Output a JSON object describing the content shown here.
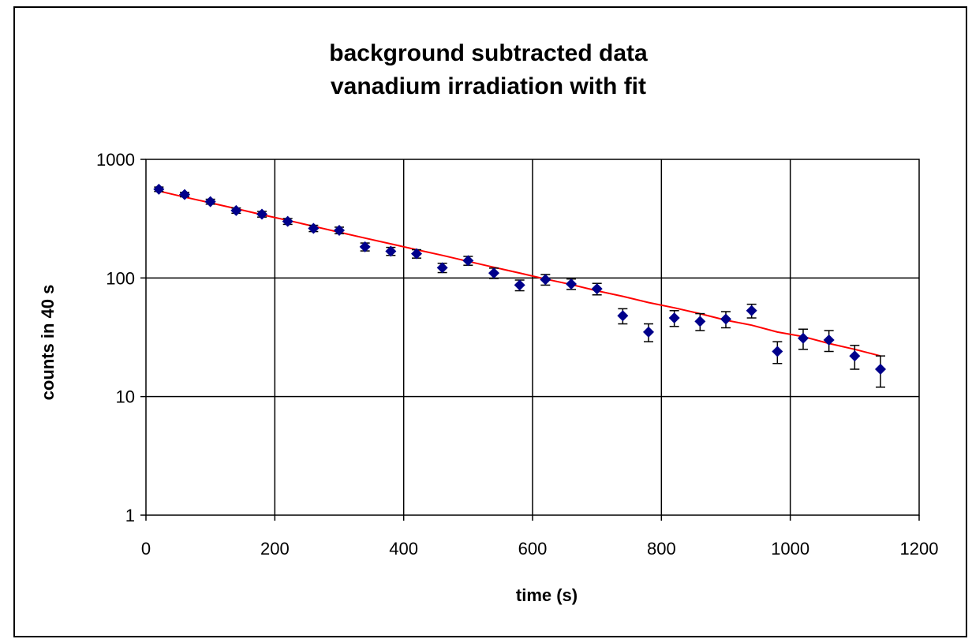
{
  "chart_data": {
    "type": "scatter",
    "title": [
      "background subtracted data",
      "vanadium irradiation with fit"
    ],
    "xlabel": "time  (s)",
    "ylabel": "counts in 40 s",
    "xlim": [
      0,
      1200
    ],
    "ylim": [
      1,
      1000
    ],
    "yscale": "log",
    "grid": true,
    "legend": "none",
    "x_ticks": [
      "0",
      "200",
      "400",
      "600",
      "800",
      "1000",
      "1200"
    ],
    "y_ticks": [
      "1",
      "10",
      "100",
      "1000"
    ],
    "colors": {
      "points": "#00008B",
      "fit": "#FF0000",
      "errorbar": "#000000",
      "grid": "#000000"
    },
    "series": [
      {
        "kind": "data_points_with_error_bars",
        "x": [
          20,
          60,
          100,
          140,
          180,
          220,
          260,
          300,
          340,
          380,
          420,
          460,
          500,
          540,
          580,
          620,
          660,
          700,
          740,
          780,
          820,
          860,
          900,
          940,
          980,
          1020,
          1060,
          1100,
          1140
        ],
        "y": [
          560,
          505,
          440,
          370,
          345,
          300,
          262,
          252,
          183,
          168,
          160,
          122,
          140,
          110,
          87,
          97,
          89,
          81,
          48,
          35,
          46,
          43,
          45,
          53,
          24,
          31,
          30,
          22,
          17
        ],
        "yerr": [
          24,
          22,
          21,
          19,
          19,
          17,
          16,
          16,
          14,
          13,
          13,
          11,
          12,
          11,
          9,
          10,
          9,
          9,
          7,
          6,
          7,
          7,
          7,
          7,
          5,
          6,
          6,
          5,
          5
        ]
      },
      {
        "kind": "fit",
        "x": [
          20,
          60,
          100,
          140,
          180,
          220,
          260,
          300,
          340,
          380,
          420,
          460,
          500,
          540,
          580,
          620,
          660,
          700,
          740,
          780,
          820,
          860,
          900,
          940,
          980,
          1020,
          1060,
          1100,
          1140
        ],
        "y": [
          540,
          481,
          430,
          384,
          342,
          306,
          273,
          243,
          217,
          194,
          173,
          155,
          138,
          123,
          110,
          98,
          88,
          78,
          70,
          62,
          56,
          50,
          44,
          40,
          35,
          32,
          28,
          25,
          22
        ]
      }
    ]
  }
}
